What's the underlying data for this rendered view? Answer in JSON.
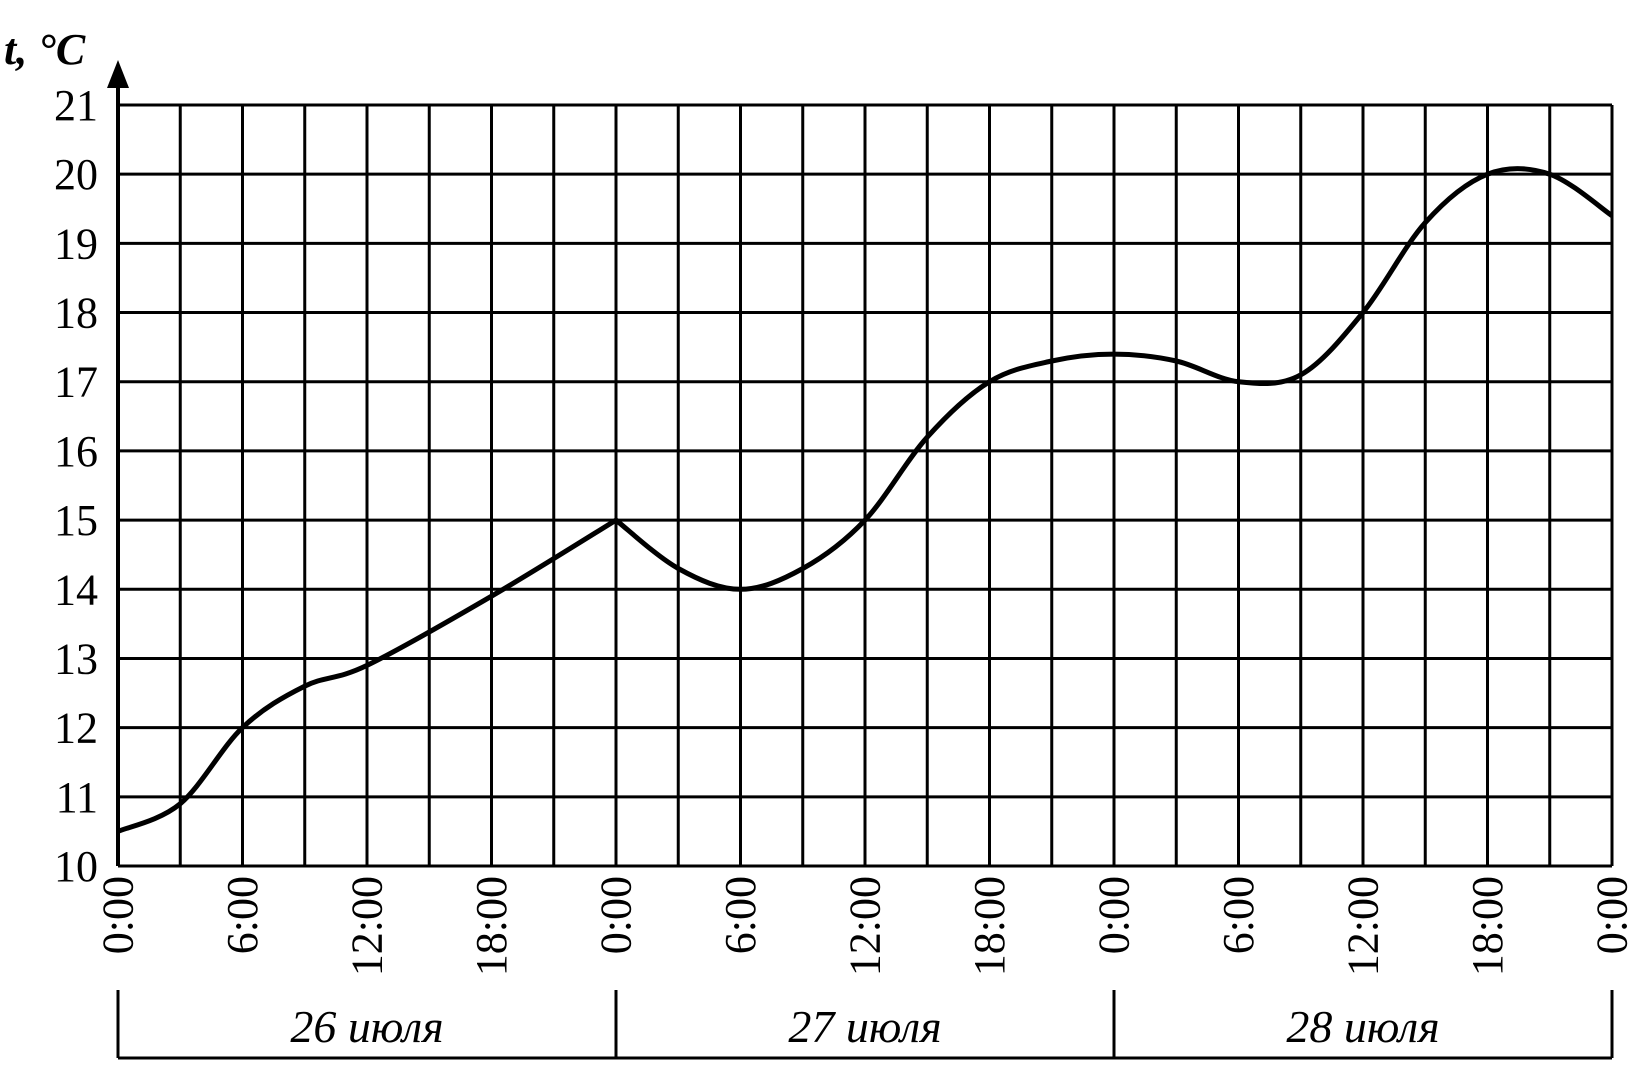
{
  "chart_data": {
    "type": "line",
    "ylabel": "t, °C",
    "ylim": [
      10,
      21
    ],
    "yticks": [
      "10",
      "11",
      "12",
      "13",
      "14",
      "15",
      "16",
      "17",
      "18",
      "19",
      "20",
      "21"
    ],
    "xticks": [
      "0:00",
      "6:00",
      "12:00",
      "18:00",
      "0:00",
      "6:00",
      "12:00",
      "18:00",
      "0:00",
      "6:00",
      "12:00",
      "18:00",
      "0:00"
    ],
    "days": [
      "26 июля",
      "27 июля",
      "28 июля"
    ],
    "grid": true,
    "x_hours": [
      0,
      3,
      6,
      9,
      12,
      18,
      24,
      27,
      30,
      33,
      36,
      39,
      42,
      45,
      48,
      51,
      54,
      57,
      60,
      63,
      66,
      69,
      72
    ],
    "series": [
      {
        "values": [
          10.5,
          10.9,
          12.0,
          12.6,
          12.9,
          13.9,
          15.0,
          14.3,
          14.0,
          14.3,
          15.0,
          16.2,
          17.0,
          17.3,
          17.4,
          17.3,
          17.0,
          17.1,
          18.0,
          19.3,
          20.0,
          20.0,
          19.4
        ]
      }
    ]
  }
}
